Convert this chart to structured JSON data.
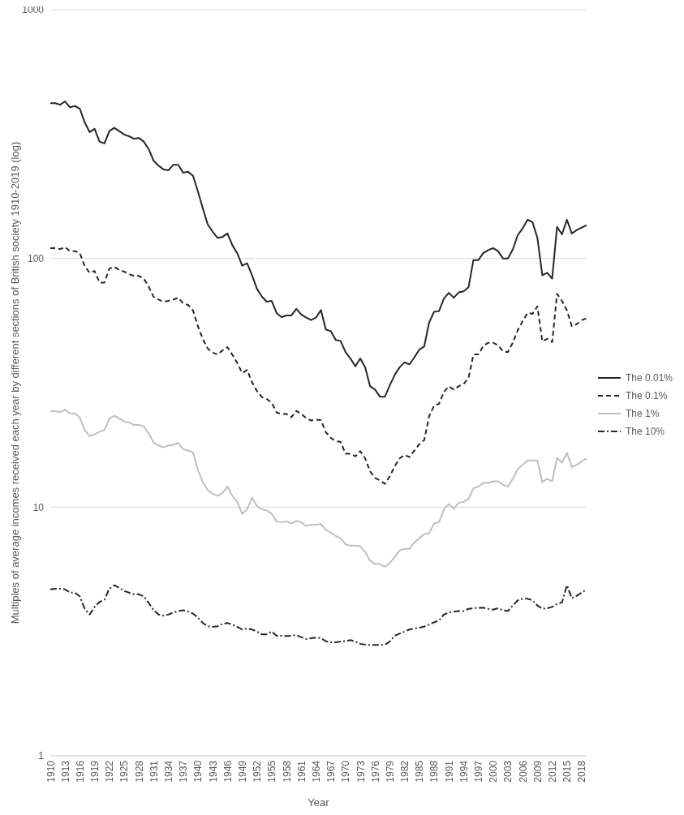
{
  "chart_data": {
    "type": "line",
    "xlabel": "Year",
    "ylabel": "Multiples of average incomes received each year by different sections of British society 1910-2019 (log)",
    "x": [
      1910,
      1911,
      1912,
      1913,
      1914,
      1915,
      1916,
      1917,
      1918,
      1919,
      1920,
      1921,
      1922,
      1923,
      1924,
      1925,
      1926,
      1927,
      1928,
      1929,
      1930,
      1931,
      1932,
      1933,
      1934,
      1935,
      1936,
      1937,
      1938,
      1939,
      1940,
      1941,
      1942,
      1943,
      1944,
      1945,
      1946,
      1947,
      1948,
      1949,
      1950,
      1951,
      1952,
      1953,
      1954,
      1955,
      1956,
      1957,
      1958,
      1959,
      1960,
      1961,
      1962,
      1963,
      1964,
      1965,
      1966,
      1967,
      1968,
      1969,
      1970,
      1971,
      1972,
      1973,
      1974,
      1975,
      1976,
      1977,
      1978,
      1979,
      1980,
      1981,
      1982,
      1983,
      1984,
      1985,
      1986,
      1987,
      1988,
      1989,
      1990,
      1991,
      1992,
      1993,
      1994,
      1995,
      1996,
      1997,
      1998,
      1999,
      2000,
      2001,
      2002,
      2003,
      2004,
      2005,
      2006,
      2007,
      2008,
      2009,
      2010,
      2011,
      2012,
      2013,
      2014,
      2015,
      2016,
      2017,
      2018,
      2019
    ],
    "series": [
      {
        "name": "The 0.01%",
        "color": "#262626",
        "line_style": "solid",
        "values": [
          421,
          421,
          415,
          428,
          405,
          410,
          400,
          352,
          322,
          332,
          295,
          290,
          325,
          335,
          325,
          315,
          310,
          303,
          305,
          295,
          275,
          247,
          236,
          228,
          226,
          238,
          238,
          221,
          223,
          215,
          186,
          159,
          137,
          128,
          121,
          122,
          126,
          113,
          105,
          93.5,
          95.6,
          85.6,
          75.5,
          70.2,
          67,
          67.5,
          60.3,
          58.1,
          59,
          59,
          62.7,
          59.5,
          57.8,
          56.5,
          57.8,
          62,
          51.8,
          51,
          47,
          46.6,
          42,
          39.6,
          36.8,
          39.6,
          36.5,
          30.6,
          29.7,
          27.8,
          27.8,
          30.9,
          34,
          36.5,
          38.2,
          37.5,
          40,
          43,
          44.3,
          55.3,
          61,
          61.4,
          69,
          72.7,
          69.5,
          73,
          73.7,
          76.5,
          98.5,
          98.5,
          105,
          108,
          110,
          107,
          100,
          100,
          108.5,
          124,
          132,
          143,
          140,
          121,
          85.6,
          87.5,
          83,
          134,
          125,
          143,
          126,
          130,
          133,
          136
        ]
      },
      {
        "name": "The 0.1%",
        "color": "#262626",
        "line_style": "dashed",
        "values": [
          110,
          110,
          109,
          111,
          107,
          107,
          105,
          93,
          87.5,
          89,
          80,
          80,
          91,
          92.5,
          90,
          88.5,
          86.5,
          85,
          85,
          83,
          77,
          70,
          68.3,
          67,
          67.5,
          68.3,
          69.5,
          66,
          65,
          61.8,
          53.4,
          47.4,
          43.4,
          41.8,
          41.1,
          42.7,
          44,
          41,
          38,
          34.6,
          35.6,
          31.8,
          29.3,
          27.7,
          27.2,
          26.3,
          24,
          23.7,
          23.7,
          23,
          24.4,
          23.7,
          22.8,
          22.3,
          22.5,
          22.4,
          20,
          19,
          18.4,
          18.3,
          16.4,
          16.4,
          16,
          16.8,
          15.7,
          13.9,
          13.1,
          12.8,
          12.4,
          13.3,
          14.6,
          15.7,
          16.2,
          15.9,
          16.9,
          17.9,
          18.6,
          23.2,
          25.6,
          26,
          29.1,
          30.6,
          29.7,
          30.6,
          31.3,
          33,
          41.1,
          41.1,
          44.4,
          45.8,
          45.8,
          44.8,
          42.3,
          42,
          45.8,
          51.4,
          55.9,
          60.4,
          59.9,
          64.1,
          46.4,
          47.5,
          46.1,
          72,
          67.5,
          61.8,
          53.4,
          54.4,
          56.4,
          57.5
        ]
      },
      {
        "name": "The 1%",
        "color": "#bfbfbf",
        "line_style": "solid",
        "values": [
          24.3,
          24.3,
          24.1,
          24.6,
          23.8,
          23.8,
          22.9,
          20.4,
          19.3,
          19.6,
          20.1,
          20.4,
          22.7,
          23.3,
          22.7,
          22.1,
          21.9,
          21.4,
          21.4,
          21.1,
          19.8,
          18.2,
          17.7,
          17.4,
          17.7,
          17.8,
          18.1,
          17.1,
          16.9,
          16.6,
          14.1,
          12.6,
          11.7,
          11.3,
          11.1,
          11.4,
          12.1,
          11.1,
          10.5,
          9.4,
          9.8,
          10.9,
          10.1,
          9.8,
          9.7,
          9.4,
          8.75,
          8.7,
          8.75,
          8.6,
          8.8,
          8.7,
          8.4,
          8.5,
          8.5,
          8.55,
          8.1,
          7.9,
          7.65,
          7.5,
          7.1,
          7,
          7,
          6.95,
          6.6,
          6.1,
          5.9,
          5.9,
          5.75,
          5.95,
          6.3,
          6.7,
          6.8,
          6.8,
          7.2,
          7.5,
          7.8,
          7.85,
          8.6,
          8.7,
          9.8,
          10.3,
          9.85,
          10.4,
          10.5,
          10.8,
          11.9,
          12.1,
          12.5,
          12.5,
          12.7,
          12.7,
          12.3,
          12.1,
          13,
          14.2,
          14.8,
          15.4,
          15.4,
          15.4,
          12.6,
          13,
          12.7,
          15.8,
          15.1,
          16.5,
          14.5,
          14.8,
          15.3,
          15.7
        ]
      },
      {
        "name": "The 10%",
        "color": "#262626",
        "line_style": "dashdot",
        "values": [
          4.67,
          4.7,
          4.7,
          4.67,
          4.53,
          4.53,
          4.37,
          3.9,
          3.7,
          3.97,
          4.15,
          4.24,
          4.7,
          4.85,
          4.74,
          4.6,
          4.53,
          4.46,
          4.46,
          4.37,
          4.12,
          3.85,
          3.7,
          3.66,
          3.7,
          3.77,
          3.82,
          3.85,
          3.8,
          3.73,
          3.6,
          3.42,
          3.32,
          3.3,
          3.32,
          3.39,
          3.42,
          3.37,
          3.3,
          3.22,
          3.25,
          3.22,
          3.16,
          3.08,
          3.08,
          3.16,
          3.04,
          3.04,
          3.03,
          3.04,
          3.06,
          3,
          2.95,
          2.97,
          2.99,
          2.97,
          2.89,
          2.86,
          2.86,
          2.88,
          2.89,
          2.92,
          2.88,
          2.82,
          2.8,
          2.79,
          2.79,
          2.79,
          2.8,
          2.88,
          3.04,
          3.1,
          3.16,
          3.22,
          3.25,
          3.27,
          3.31,
          3.37,
          3.44,
          3.5,
          3.7,
          3.77,
          3.8,
          3.82,
          3.82,
          3.9,
          3.92,
          3.94,
          3.94,
          3.9,
          3.87,
          3.92,
          3.85,
          3.82,
          4.02,
          4.22,
          4.28,
          4.28,
          4.22,
          4.02,
          3.9,
          3.92,
          3.97,
          4.08,
          4.14,
          4.85,
          4.3,
          4.4,
          4.53,
          4.67
        ]
      }
    ],
    "xlim": [
      1910,
      2019
    ],
    "xticks": [
      1910,
      1913,
      1916,
      1919,
      1922,
      1925,
      1928,
      1931,
      1934,
      1937,
      1940,
      1943,
      1946,
      1949,
      1952,
      1955,
      1958,
      1961,
      1964,
      1967,
      1970,
      1973,
      1976,
      1979,
      1982,
      1985,
      1988,
      1991,
      1994,
      1997,
      2000,
      2003,
      2006,
      2009,
      2012,
      2015,
      2018
    ],
    "ylim": [
      1,
      1000
    ],
    "yticks": [
      1,
      10,
      100,
      1000
    ],
    "log": true,
    "grid": "y",
    "legend": "right",
    "marker": "none"
  }
}
